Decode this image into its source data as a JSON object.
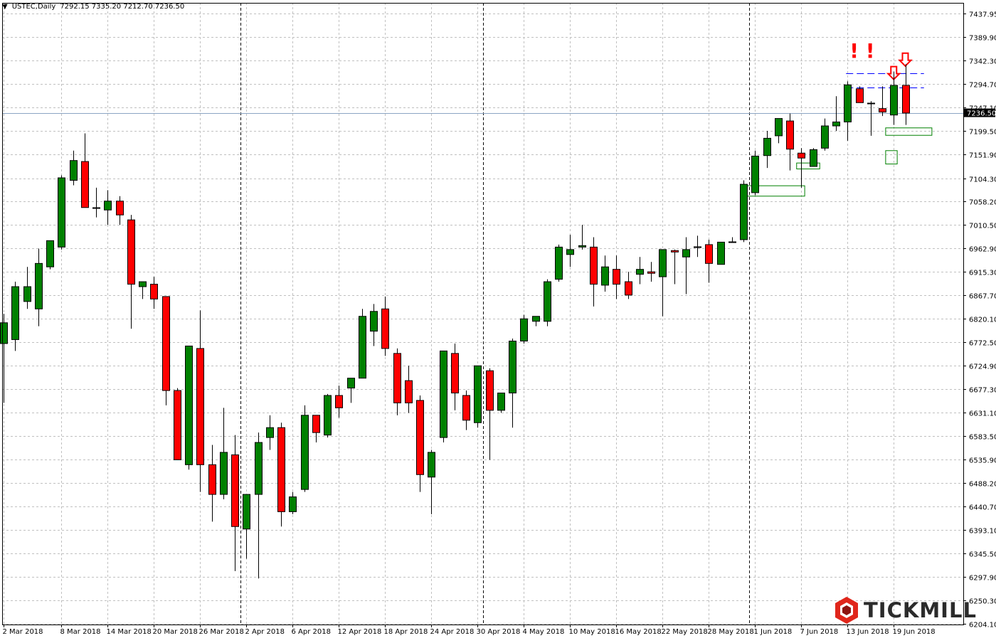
{
  "header": {
    "symbol": "USTEC,Daily",
    "ohlc": "7292.15 7335.20 7212.70 7236.50"
  },
  "watermark": {
    "text": "TICKMILL",
    "logo_icon": "tickmill-hexagon-logo-icon"
  },
  "colors": {
    "bull": "#008000",
    "bear": "#ff0000",
    "wick": "#000000",
    "grid": "#c0c0c0",
    "period_separator": "#000000",
    "price_line": "#8ca5c4",
    "resistance": "#0000ff",
    "zone": "#008000",
    "marker": "#ff0000"
  },
  "chart_data": {
    "type": "candlestick",
    "ylim": [
      6204.0,
      7450.0
    ],
    "y_ticks": [
      "7437.95",
      "7389.90",
      "7342.30",
      "7294.70",
      "7247.10",
      "7199.50",
      "7151.90",
      "7104.30",
      "7058.20",
      "7010.50",
      "6962.90",
      "6915.30",
      "6867.70",
      "6820.10",
      "6772.50",
      "6724.90",
      "6677.30",
      "6631.10",
      "6583.50",
      "6535.90",
      "6488.20",
      "6440.70",
      "6393.10",
      "6345.50",
      "6297.90",
      "6250.30",
      "6204.10"
    ],
    "x_labels": [
      {
        "label": "2 Mar 2018",
        "i": 0
      },
      {
        "label": "8 Mar 2018",
        "i": 5
      },
      {
        "label": "14 Mar 2018",
        "i": 9
      },
      {
        "label": "20 Mar 2018",
        "i": 13
      },
      {
        "label": "26 Mar 2018",
        "i": 17
      },
      {
        "label": "2 Apr 2018",
        "i": 21
      },
      {
        "label": "6 Apr 2018",
        "i": 25
      },
      {
        "label": "12 Apr 2018",
        "i": 29
      },
      {
        "label": "18 Apr 2018",
        "i": 33
      },
      {
        "label": "24 Apr 2018",
        "i": 37
      },
      {
        "label": "30 Apr 2018",
        "i": 41
      },
      {
        "label": "4 May 2018",
        "i": 45
      },
      {
        "label": "10 May 2018",
        "i": 49
      },
      {
        "label": "16 May 2018",
        "i": 53
      },
      {
        "label": "22 May 2018",
        "i": 57
      },
      {
        "label": "28 May 2018",
        "i": 61
      },
      {
        "label": "1 Jun 2018",
        "i": 65
      },
      {
        "label": "7 Jun 2018",
        "i": 69
      },
      {
        "label": "13 Jun 2018",
        "i": 73
      },
      {
        "label": "19 Jun 2018",
        "i": 77
      }
    ],
    "period_separator_indices": [
      20,
      41,
      64
    ],
    "current_price": 7236.5,
    "current_price_label": "7236.50",
    "candles": [
      [
        6770,
        6830,
        6650,
        6812
      ],
      [
        6778,
        6895,
        6755,
        6885
      ],
      [
        6855,
        6925,
        6840,
        6885
      ],
      [
        6840,
        6962,
        6805,
        6932
      ],
      [
        6925,
        6975,
        6920,
        6978
      ],
      [
        6965,
        7110,
        6960,
        7105
      ],
      [
        7100,
        7160,
        7090,
        7140
      ],
      [
        7138,
        7195,
        7050,
        7045
      ],
      [
        7045,
        7085,
        7025,
        7045
      ],
      [
        7040,
        7080,
        7010,
        7058
      ],
      [
        7058,
        7068,
        7010,
        7030
      ],
      [
        7020,
        7030,
        6800,
        6890
      ],
      [
        6885,
        6895,
        6860,
        6895
      ],
      [
        6890,
        6905,
        6840,
        6860
      ],
      [
        6865,
        6865,
        6645,
        6675
      ],
      [
        6675,
        6680,
        6535,
        6535
      ],
      [
        6525,
        6765,
        6515,
        6765
      ],
      [
        6760,
        6837,
        6470,
        6525
      ],
      [
        6525,
        6565,
        6410,
        6465
      ],
      [
        6465,
        6640,
        6455,
        6550
      ],
      [
        6545,
        6585,
        6310,
        6400
      ],
      [
        6395,
        6465,
        6335,
        6465
      ],
      [
        6465,
        6590,
        6295,
        6570
      ],
      [
        6580,
        6625,
        6555,
        6600
      ],
      [
        6600,
        6610,
        6400,
        6430
      ],
      [
        6430,
        6470,
        6425,
        6460
      ],
      [
        6475,
        6645,
        6470,
        6625
      ],
      [
        6625,
        6625,
        6570,
        6590
      ],
      [
        6585,
        6668,
        6580,
        6665
      ],
      [
        6665,
        6685,
        6620,
        6640
      ],
      [
        6680,
        6700,
        6650,
        6700
      ],
      [
        6700,
        6840,
        6700,
        6825
      ],
      [
        6795,
        6850,
        6765,
        6835
      ],
      [
        6840,
        6865,
        6745,
        6760
      ],
      [
        6750,
        6760,
        6625,
        6650
      ],
      [
        6695,
        6725,
        6630,
        6650
      ],
      [
        6655,
        6665,
        6470,
        6505
      ],
      [
        6500,
        6555,
        6425,
        6550
      ],
      [
        6580,
        6750,
        6570,
        6755
      ],
      [
        6750,
        6770,
        6635,
        6670
      ],
      [
        6665,
        6675,
        6595,
        6615
      ],
      [
        6610,
        6725,
        6600,
        6725
      ],
      [
        6715,
        6720,
        6535,
        6635
      ],
      [
        6635,
        6670,
        6630,
        6670
      ],
      [
        6670,
        6780,
        6600,
        6775
      ],
      [
        6775,
        6828,
        6770,
        6820
      ],
      [
        6815,
        6820,
        6805,
        6825
      ],
      [
        6815,
        6900,
        6805,
        6895
      ],
      [
        6900,
        6970,
        6895,
        6965
      ],
      [
        6950,
        6990,
        6925,
        6960
      ],
      [
        6965,
        7010,
        6960,
        6968
      ],
      [
        6965,
        6985,
        6845,
        6890
      ],
      [
        6888,
        6948,
        6875,
        6925
      ],
      [
        6920,
        6948,
        6860,
        6890
      ],
      [
        6895,
        6915,
        6860,
        6868
      ],
      [
        6910,
        6945,
        6890,
        6920
      ],
      [
        6915,
        6935,
        6895,
        6912
      ],
      [
        6905,
        6960,
        6825,
        6960
      ],
      [
        6958,
        6960,
        6890,
        6955
      ],
      [
        6945,
        6985,
        6870,
        6960
      ],
      [
        6965,
        6988,
        6945,
        6965
      ],
      [
        6970,
        6980,
        6893,
        6932
      ],
      [
        6930,
        6975,
        6935,
        6975
      ],
      [
        6975,
        6985,
        6975,
        6975
      ],
      [
        6980,
        7100,
        6975,
        7092
      ],
      [
        7075,
        7160,
        7070,
        7149
      ],
      [
        7150,
        7200,
        7125,
        7185
      ],
      [
        7190,
        7225,
        7175,
        7225
      ],
      [
        7220,
        7235,
        7120,
        7163
      ],
      [
        7155,
        7165,
        7085,
        7145
      ],
      [
        7128,
        7165,
        7130,
        7162
      ],
      [
        7165,
        7225,
        7160,
        7210
      ],
      [
        7210,
        7270,
        7200,
        7218
      ],
      [
        7218,
        7300,
        7180,
        7293
      ],
      [
        7285,
        7290,
        7260,
        7257
      ],
      [
        7257,
        7260,
        7190,
        7255
      ],
      [
        7245,
        7290,
        7230,
        7238
      ],
      [
        7232,
        7320,
        7212,
        7292
      ],
      [
        7292,
        7335,
        7212,
        7236
      ]
    ],
    "annotations": {
      "resistance_lines": [
        7316,
        7288
      ],
      "resistance_range": [
        73,
        79
      ],
      "exclamation": {
        "text": "! !",
        "i": 73.8,
        "y": 7348
      },
      "down_arrows": [
        {
          "i": 77,
          "y": 7330
        },
        {
          "i": 78,
          "y": 7357
        }
      ],
      "zones": [
        {
          "i0": 64.3,
          "i1": 69.3,
          "y0": 7068,
          "y1": 7089
        },
        {
          "i0": 68.6,
          "i1": 70.6,
          "y0": 7123,
          "y1": 7135
        },
        {
          "i0": 76.3,
          "i1": 77.3,
          "y0": 7133,
          "y1": 7160
        },
        {
          "i0": 76.3,
          "i1": 80.3,
          "y0": 7191,
          "y1": 7206
        }
      ]
    }
  }
}
